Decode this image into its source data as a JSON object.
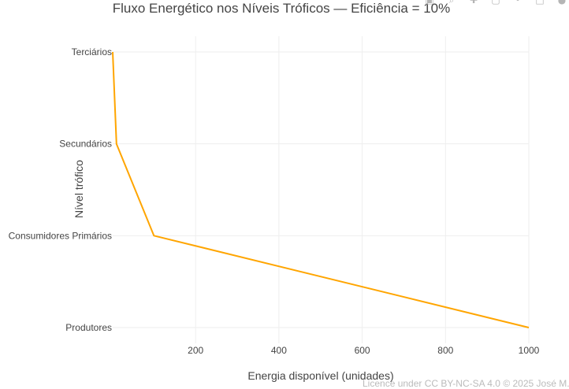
{
  "chart_data": {
    "type": "line",
    "title": "Fluxo Energético nos Níveis Tróficos — Eficiência = 10%",
    "xlabel": "Energia disponível (unidades)",
    "ylabel": "Nível trófico",
    "categories": [
      "Produtores",
      "Consumidores Primários",
      "Secundários",
      "Terciários"
    ],
    "x": [
      1000,
      100,
      10,
      1
    ],
    "x_ticks": [
      200,
      400,
      600,
      800,
      1000
    ],
    "x_tick_labels": [
      "200",
      "400",
      "600",
      "800",
      "1000"
    ],
    "xlim": [
      1,
      1000
    ],
    "grid": true,
    "legend": "none",
    "series": [
      {
        "color": "#FFA500",
        "values": [
          1000,
          100,
          10,
          1
        ]
      }
    ]
  },
  "toolbar": {
    "icons": [
      "camera-icon",
      "zoom-icon",
      "pan-icon",
      "autoscale-icon",
      "spike-icon",
      "zoom-in-icon",
      "reset-icon"
    ]
  },
  "license": "Licence under CC BY-NC-SA 4.0 © 2025 José M."
}
